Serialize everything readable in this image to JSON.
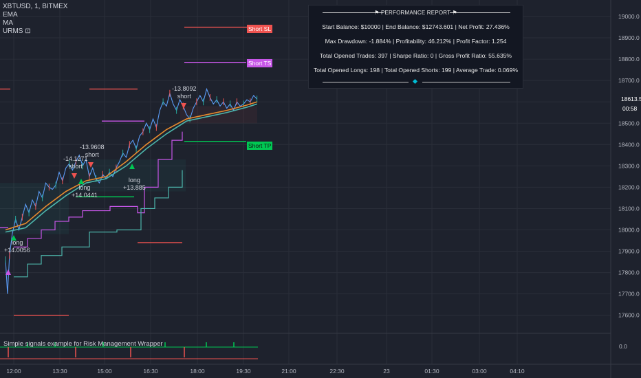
{
  "legend": {
    "symbol": "XBTUSD, 1, BITMEX",
    "ema": "EMA",
    "ma": "MA",
    "urms": "URMS ⊡"
  },
  "report": {
    "title": "⚑ PERFORMANCE REPORT ⚑",
    "row1": "Start Balance: $10000  |  End Balance: $12743.601  |  Net Profit: 27.436%",
    "row2": "Max Drawdown: -1.884%  |  Profitability: 46.212%  |  Profit Factor: 1.254",
    "row3": "Total Opened Trades: 397  |  Sharpe Ratio: 0  |  Gross Profit Ratio: 55.635%",
    "row4": "Total Opened Longs: 198  |  Total Opened Shorts: 199  |  Average Trade: 0.069%"
  },
  "labels": {
    "short_sl": "Short SL",
    "short_ts": "Short TS",
    "short_tp": "Short TP"
  },
  "annotations": [
    {
      "text": "-13.8092",
      "sub": "short",
      "kind": "short"
    },
    {
      "text": "-13.9608",
      "sub": "short",
      "kind": "short"
    },
    {
      "text": "-14.1271",
      "sub": "short",
      "kind": "short"
    },
    {
      "text": "long",
      "sub": "+14.0441",
      "kind": "long"
    },
    {
      "text": "long",
      "sub": "+13.885",
      "kind": "long"
    },
    {
      "text": "long",
      "sub": "+14.0056",
      "kind": "long"
    }
  ],
  "indicator": {
    "title": "Simple signals example for Risk Management Wrapper",
    "value": "0.0"
  },
  "last_price": "18613.5",
  "countdown": "00:58",
  "colors": {
    "up": "#26a69a",
    "down": "#ef5350",
    "ema": "#e68a2e",
    "ma": "#4db6ac",
    "bg": "#1e222d",
    "purple": "#c756e8",
    "green": "#00c853"
  },
  "chart_data": {
    "type": "line",
    "y_ticks": [
      "19000.0",
      "18900.0",
      "18800.0",
      "18700.0",
      "18600.0",
      "18500.0",
      "18400.0",
      "18300.0",
      "18200.0",
      "18100.0",
      "18000.0",
      "17900.0",
      "17800.0",
      "17700.0",
      "17600.0"
    ],
    "x_ticks": [
      "12:00",
      "13:30",
      "15:00",
      "16:30",
      "18:00",
      "19:30",
      "21:00",
      "22:30",
      "23",
      "01:30",
      "03:00",
      "04:10"
    ],
    "ylim": [
      17550,
      19050
    ],
    "price_path": [
      [
        0,
        17860
      ],
      [
        3,
        17700
      ],
      [
        6,
        17880
      ],
      [
        10,
        17980
      ],
      [
        15,
        18050
      ],
      [
        20,
        18000
      ],
      [
        25,
        18060
      ],
      [
        30,
        18120
      ],
      [
        35,
        18080
      ],
      [
        40,
        18140
      ],
      [
        45,
        18110
      ],
      [
        50,
        18180
      ],
      [
        55,
        18150
      ],
      [
        60,
        18220
      ],
      [
        65,
        18200
      ],
      [
        70,
        18190
      ],
      [
        75,
        18210
      ],
      [
        80,
        18270
      ],
      [
        85,
        18230
      ],
      [
        90,
        18290
      ],
      [
        95,
        18310
      ],
      [
        100,
        18280
      ],
      [
        105,
        18320
      ],
      [
        110,
        18350
      ],
      [
        115,
        18300
      ],
      [
        120,
        18330
      ],
      [
        125,
        18250
      ],
      [
        130,
        18290
      ],
      [
        135,
        18240
      ],
      [
        140,
        18220
      ],
      [
        145,
        18260
      ],
      [
        150,
        18240
      ],
      [
        155,
        18270
      ],
      [
        160,
        18250
      ],
      [
        165,
        18290
      ],
      [
        170,
        18320
      ],
      [
        175,
        18360
      ],
      [
        180,
        18340
      ],
      [
        185,
        18400
      ],
      [
        190,
        18420
      ],
      [
        195,
        18380
      ],
      [
        200,
        18440
      ],
      [
        205,
        18460
      ],
      [
        210,
        18500
      ],
      [
        215,
        18470
      ],
      [
        220,
        18520
      ],
      [
        225,
        18480
      ],
      [
        230,
        18560
      ],
      [
        235,
        18600
      ],
      [
        240,
        18580
      ],
      [
        245,
        18640
      ],
      [
        250,
        18590
      ],
      [
        255,
        18560
      ],
      [
        260,
        18610
      ],
      [
        265,
        18580
      ],
      [
        270,
        18540
      ],
      [
        275,
        18520
      ],
      [
        280,
        18570
      ],
      [
        285,
        18600
      ],
      [
        290,
        18630
      ],
      [
        295,
        18600
      ],
      [
        300,
        18660
      ],
      [
        305,
        18620
      ],
      [
        310,
        18590
      ],
      [
        315,
        18610
      ],
      [
        320,
        18580
      ],
      [
        325,
        18600
      ],
      [
        330,
        18570
      ],
      [
        335,
        18590
      ],
      [
        340,
        18560
      ],
      [
        345,
        18600
      ],
      [
        350,
        18580
      ],
      [
        355,
        18590
      ],
      [
        360,
        18610
      ],
      [
        365,
        18600
      ],
      [
        370,
        18630
      ],
      [
        375,
        18613
      ]
    ],
    "ema_path": [
      [
        0,
        18000
      ],
      [
        30,
        18030
      ],
      [
        60,
        18110
      ],
      [
        90,
        18180
      ],
      [
        120,
        18230
      ],
      [
        150,
        18250
      ],
      [
        180,
        18320
      ],
      [
        210,
        18400
      ],
      [
        240,
        18470
      ],
      [
        270,
        18520
      ],
      [
        300,
        18540
      ],
      [
        330,
        18560
      ],
      [
        360,
        18585
      ],
      [
        375,
        18600
      ]
    ],
    "ma_path": [
      [
        0,
        17990
      ],
      [
        30,
        18010
      ],
      [
        60,
        18090
      ],
      [
        90,
        18160
      ],
      [
        120,
        18220
      ],
      [
        150,
        18240
      ],
      [
        180,
        18300
      ],
      [
        210,
        18380
      ],
      [
        240,
        18450
      ],
      [
        270,
        18510
      ],
      [
        300,
        18530
      ],
      [
        330,
        18550
      ],
      [
        360,
        18575
      ],
      [
        375,
        18590
      ]
    ]
  }
}
